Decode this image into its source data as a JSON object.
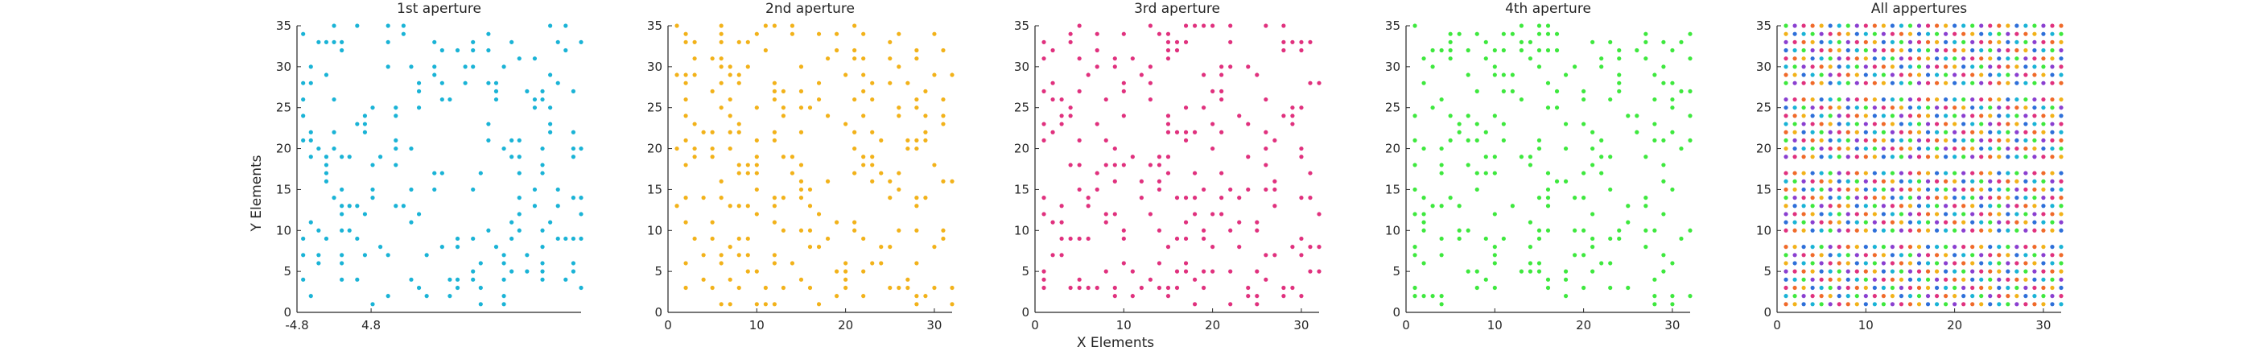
{
  "figure": {
    "xlabel": "X Elements",
    "ylabel": "Y Elements"
  },
  "chart_data": [
    {
      "type": "scatter",
      "title": "1st aperture",
      "color": "#1ab3d6",
      "xlim": [
        -4.8,
        32
      ],
      "ylim": [
        0,
        35
      ],
      "xticks": [
        -4.8,
        4.8
      ],
      "xtick_labels": [
        "-4.8",
        "4.8"
      ],
      "yticks": [
        0,
        5,
        10,
        15,
        20,
        25,
        30,
        35
      ],
      "pattern": {
        "mode": "random",
        "seed": 11,
        "x_range": [
          -4,
          32
        ],
        "y_range": [
          1,
          35
        ],
        "density": 0.16
      }
    },
    {
      "type": "scatter",
      "title": "2nd aperture",
      "color": "#f2b21a",
      "xlim": [
        0,
        32
      ],
      "ylim": [
        0,
        35
      ],
      "xticks": [
        0,
        10,
        20,
        30
      ],
      "xtick_labels": [
        "0",
        "10",
        "20",
        "30"
      ],
      "yticks": [
        0,
        5,
        10,
        15,
        20,
        25,
        30,
        35
      ],
      "pattern": {
        "mode": "random",
        "seed": 23,
        "x_range": [
          1,
          32
        ],
        "y_range": [
          1,
          35
        ],
        "density": 0.2
      }
    },
    {
      "type": "scatter",
      "title": "3rd aperture",
      "color": "#e0317e",
      "xlim": [
        0,
        32
      ],
      "ylim": [
        0,
        35
      ],
      "xticks": [
        0,
        10,
        20,
        30
      ],
      "xtick_labels": [
        "0",
        "10",
        "20",
        "30"
      ],
      "yticks": [
        0,
        5,
        10,
        15,
        20,
        25,
        30,
        35
      ],
      "pattern": {
        "mode": "random",
        "seed": 37,
        "x_range": [
          1,
          32
        ],
        "y_range": [
          1,
          35
        ],
        "density": 0.2
      }
    },
    {
      "type": "scatter",
      "title": "4th aperture",
      "color": "#3ee83e",
      "xlim": [
        0,
        32
      ],
      "ylim": [
        0,
        35
      ],
      "xticks": [
        0,
        10,
        20,
        30
      ],
      "xtick_labels": [
        "0",
        "10",
        "20",
        "30"
      ],
      "yticks": [
        0,
        5,
        10,
        15,
        20,
        25,
        30,
        35
      ],
      "pattern": {
        "mode": "random",
        "seed": 53,
        "x_range": [
          1,
          32
        ],
        "y_range": [
          1,
          35
        ],
        "density": 0.2
      }
    },
    {
      "type": "scatter",
      "title": "All appertures",
      "color": "multi",
      "palette": [
        "#1ab3d6",
        "#f2b21a",
        "#e0317e",
        "#3ee83e",
        "#2e6fd9",
        "#f06a2a",
        "#8a3fd0"
      ],
      "xlim": [
        0,
        32
      ],
      "ylim": [
        0,
        35
      ],
      "xticks": [
        0,
        10,
        20,
        30
      ],
      "xtick_labels": [
        "0",
        "10",
        "20",
        "30"
      ],
      "yticks": [
        0,
        5,
        10,
        15,
        20,
        25,
        30,
        35
      ],
      "pattern": {
        "mode": "grid",
        "x_range": [
          1,
          32
        ],
        "y_range": [
          1,
          35
        ],
        "skip_rows": [
          9,
          18,
          27
        ]
      }
    }
  ]
}
